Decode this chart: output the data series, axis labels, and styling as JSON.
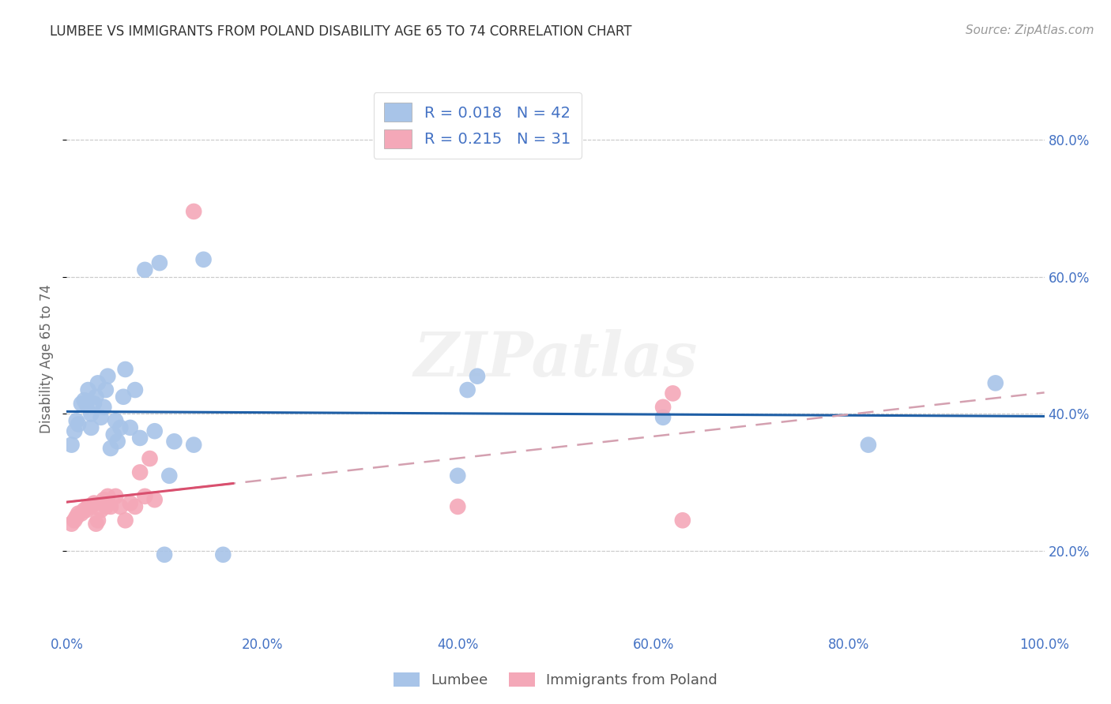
{
  "title": "LUMBEE VS IMMIGRANTS FROM POLAND DISABILITY AGE 65 TO 74 CORRELATION CHART",
  "source": "Source: ZipAtlas.com",
  "ylabel": "Disability Age 65 to 74",
  "watermark": "ZIPatlas",
  "lumbee_R": 0.018,
  "lumbee_N": 42,
  "poland_R": 0.215,
  "poland_N": 31,
  "xlim": [
    0.0,
    1.0
  ],
  "ylim": [
    0.08,
    0.88
  ],
  "xticks": [
    0.0,
    0.2,
    0.4,
    0.6,
    0.8,
    1.0
  ],
  "yticks": [
    0.2,
    0.4,
    0.6,
    0.8
  ],
  "xtick_labels": [
    "0.0%",
    "20.0%",
    "40.0%",
    "60.0%",
    "80.0%",
    "100.0%"
  ],
  "ytick_labels": [
    "20.0%",
    "40.0%",
    "60.0%",
    "80.0%"
  ],
  "lumbee_color": "#a8c4e8",
  "poland_color": "#f4a8b8",
  "lumbee_line_color": "#1f5fa6",
  "poland_line_color": "#d94f6e",
  "poland_dash_color": "#d4a0b0",
  "legend_label_lumbee": "Lumbee",
  "legend_label_poland": "Immigrants from Poland",
  "lumbee_x": [
    0.005,
    0.008,
    0.01,
    0.012,
    0.015,
    0.018,
    0.02,
    0.022,
    0.025,
    0.025,
    0.028,
    0.03,
    0.032,
    0.035,
    0.038,
    0.04,
    0.042,
    0.045,
    0.048,
    0.05,
    0.052,
    0.055,
    0.058,
    0.06,
    0.065,
    0.07,
    0.075,
    0.08,
    0.09,
    0.095,
    0.1,
    0.105,
    0.11,
    0.13,
    0.14,
    0.16,
    0.4,
    0.41,
    0.42,
    0.61,
    0.82,
    0.95
  ],
  "lumbee_y": [
    0.355,
    0.375,
    0.39,
    0.385,
    0.415,
    0.42,
    0.415,
    0.435,
    0.38,
    0.4,
    0.415,
    0.425,
    0.445,
    0.395,
    0.41,
    0.435,
    0.455,
    0.35,
    0.37,
    0.39,
    0.36,
    0.38,
    0.425,
    0.465,
    0.38,
    0.435,
    0.365,
    0.61,
    0.375,
    0.62,
    0.195,
    0.31,
    0.36,
    0.355,
    0.625,
    0.195,
    0.31,
    0.435,
    0.455,
    0.395,
    0.355,
    0.445
  ],
  "poland_x": [
    0.005,
    0.008,
    0.01,
    0.012,
    0.015,
    0.018,
    0.02,
    0.022,
    0.025,
    0.028,
    0.03,
    0.032,
    0.035,
    0.038,
    0.04,
    0.042,
    0.045,
    0.05,
    0.055,
    0.06,
    0.065,
    0.07,
    0.075,
    0.08,
    0.085,
    0.09,
    0.13,
    0.4,
    0.61,
    0.62,
    0.63
  ],
  "poland_y": [
    0.24,
    0.245,
    0.25,
    0.255,
    0.255,
    0.26,
    0.26,
    0.265,
    0.265,
    0.27,
    0.24,
    0.245,
    0.26,
    0.275,
    0.265,
    0.28,
    0.265,
    0.28,
    0.265,
    0.245,
    0.27,
    0.265,
    0.315,
    0.28,
    0.335,
    0.275,
    0.695,
    0.265,
    0.41,
    0.43,
    0.245
  ],
  "background_color": "#ffffff",
  "grid_color": "#cccccc"
}
